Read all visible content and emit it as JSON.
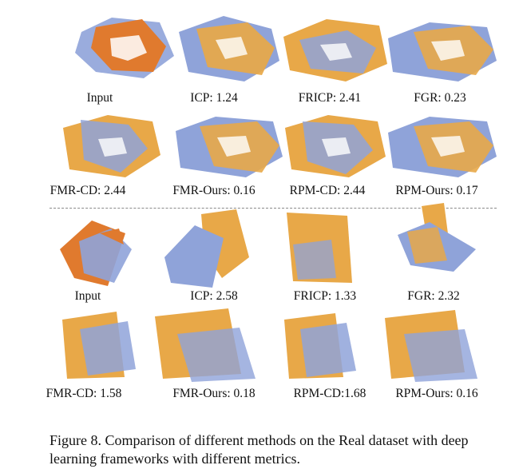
{
  "colors": {
    "blue": "#8fa3d9",
    "orange": "#e8a848",
    "deep_orange": "#e07a2e"
  },
  "rows": [
    {
      "cells": [
        {
          "label": "Input",
          "variant": "input-room"
        },
        {
          "label": "ICP: 1.24",
          "variant": "room-a"
        },
        {
          "label": "FRICP: 2.41",
          "variant": "room-b"
        },
        {
          "label": "FGR: 0.23",
          "variant": "room-c"
        }
      ]
    },
    {
      "cells": [
        {
          "label": "FMR-CD: 2.44",
          "variant": "room-d"
        },
        {
          "label": "FMR-Ours: 0.16",
          "variant": "room-c"
        },
        {
          "label": "RPM-CD: 2.44",
          "variant": "room-d"
        },
        {
          "label": "RPM-Ours: 0.17",
          "variant": "room-c"
        }
      ]
    },
    {
      "cells": [
        {
          "label": "Input",
          "variant": "input-chair"
        },
        {
          "label": "ICP: 2.58",
          "variant": "chair-a"
        },
        {
          "label": "FRICP: 1.33",
          "variant": "chair-b"
        },
        {
          "label": "FGR: 2.32",
          "variant": "chair-c"
        }
      ]
    },
    {
      "cells": [
        {
          "label": "FMR-CD: 1.58",
          "variant": "chair-d"
        },
        {
          "label": "FMR-Ours: 0.18",
          "variant": "chair-b"
        },
        {
          "label": "RPM-CD:1.68",
          "variant": "chair-d"
        },
        {
          "label": "RPM-Ours: 0.16",
          "variant": "chair-b"
        }
      ]
    }
  ],
  "caption": "Figure 8. Comparison of different methods on the Real dataset with deep learning frameworks with different metrics."
}
